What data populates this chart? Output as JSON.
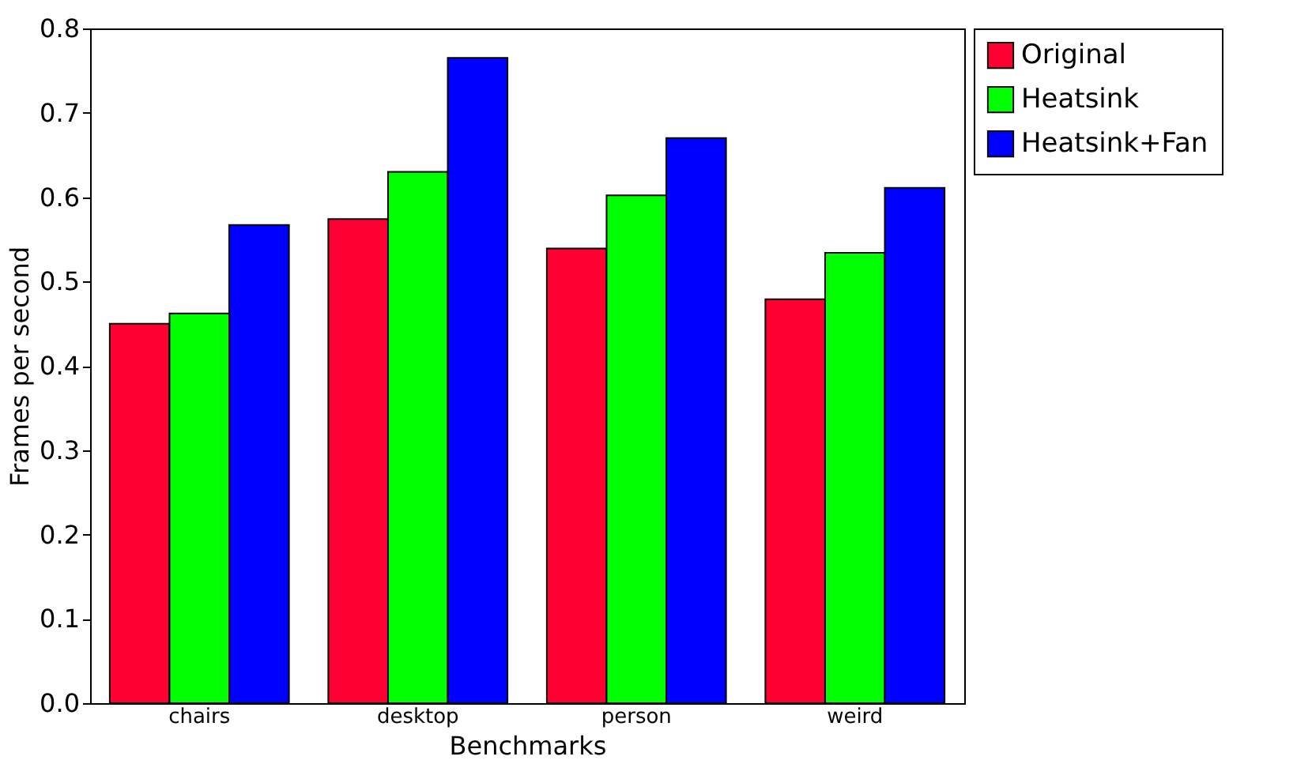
{
  "chart_data": {
    "type": "bar",
    "xlabel": "Benchmarks",
    "ylabel": "Frames per second",
    "categories": [
      "chairs",
      "desktop",
      "person",
      "weird"
    ],
    "series": [
      {
        "name": "Original",
        "color": "#ff0033",
        "values": [
          0.45,
          0.574,
          0.539,
          0.479
        ]
      },
      {
        "name": "Heatsink",
        "color": "#00ff00",
        "values": [
          0.462,
          0.63,
          0.602,
          0.534
        ]
      },
      {
        "name": "Heatsink+Fan",
        "color": "#0000ff",
        "values": [
          0.567,
          0.765,
          0.67,
          0.611
        ]
      }
    ],
    "ylim": [
      0,
      0.8
    ],
    "yticks": [
      {
        "value": 0,
        "label": "0.0"
      },
      {
        "value": 0.1,
        "label": "0.1"
      },
      {
        "value": 0.2,
        "label": "0.2"
      },
      {
        "value": 0.3,
        "label": "0.3"
      },
      {
        "value": 0.4,
        "label": "0.4"
      },
      {
        "value": 0.5,
        "label": "0.5"
      },
      {
        "value": 0.6,
        "label": "0.6"
      },
      {
        "value": 0.7,
        "label": "0.7"
      },
      {
        "value": 0.8,
        "label": "0.8"
      }
    ],
    "grid": false,
    "legend": "right"
  }
}
